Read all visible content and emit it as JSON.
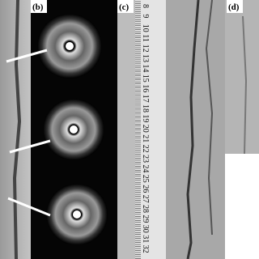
{
  "panels": {
    "b": {
      "label": "(b)"
    },
    "c": {
      "label": "(c)"
    },
    "d": {
      "label": "(d)"
    }
  },
  "ruler": {
    "labels": [
      "8",
      "9",
      "10",
      "11",
      "12",
      "13",
      "14",
      "15",
      "16",
      "17",
      "18",
      "19",
      "20",
      "21",
      "22",
      "23",
      "24",
      "25",
      "26",
      "27",
      "28",
      "29",
      "30",
      "31",
      "32"
    ]
  }
}
